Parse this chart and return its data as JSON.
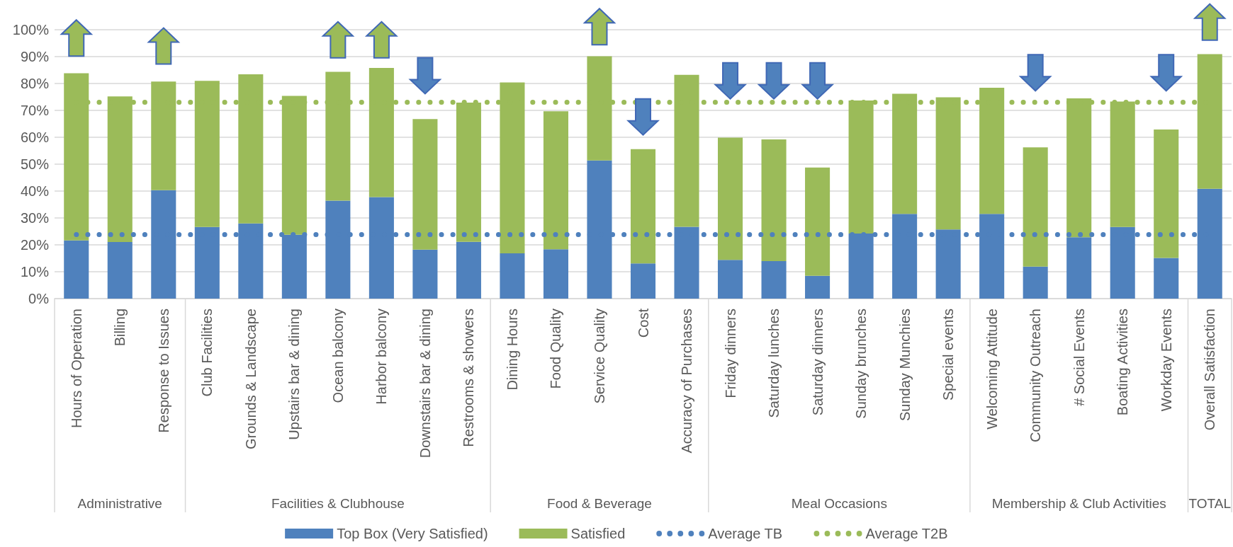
{
  "chart_data": {
    "type": "bar",
    "stacked": true,
    "categories": [
      "Hours of Operation",
      "Billing",
      "Response to Issues",
      "Club Facilities",
      "Grounds & Landscape",
      "Upstairs bar & dining",
      "Ocean balcony",
      "Harbor balcony",
      "Downstairs bar & dining",
      "Restrooms & showers",
      "Dining Hours",
      "Food Quality",
      "Service Quality",
      "Cost",
      "Accuracy of Purchases",
      "Friday dinners",
      "Saturday lunches",
      "Saturday dinners",
      "Sunday brunches",
      "Sunday Munchies",
      "Special events",
      "Welcoming Attitude",
      "Community Outreach",
      "# Social Events",
      "Boating Activities",
      "Workday Events",
      "Overall Satisfaction"
    ],
    "series": [
      {
        "name": "Top Box (Very Satisfied)",
        "color": "#4f81bd",
        "values": [
          21.6,
          21.0,
          40.3,
          26.6,
          27.9,
          23.7,
          36.4,
          37.7,
          18.2,
          21.1,
          16.8,
          18.3,
          51.3,
          13.1,
          26.7,
          14.4,
          13.9,
          8.5,
          24.2,
          31.5,
          25.7,
          31.5,
          11.9,
          22.8,
          26.6,
          15.1,
          40.8
        ]
      },
      {
        "name": "Satisfied",
        "color": "#9bbb59",
        "values": [
          62.1,
          54.1,
          40.3,
          54.3,
          55.4,
          51.6,
          47.8,
          48.0,
          48.5,
          51.7,
          63.5,
          51.3,
          38.7,
          42.4,
          56.4,
          45.4,
          45.2,
          40.2,
          49.4,
          44.6,
          49.1,
          46.8,
          44.3,
          51.6,
          46.6,
          47.7,
          50.0
        ]
      }
    ],
    "ref_lines": [
      {
        "axis": "y",
        "value": 23.9,
        "label": "Average TB",
        "color": "#4f81bd",
        "line_style": "dotted"
      },
      {
        "axis": "y",
        "value": 72.9,
        "label": "Average T2B",
        "color": "#9bbb59",
        "line_style": "dotted"
      }
    ],
    "ylim": [
      0,
      100
    ],
    "yticks": [
      {
        "value": 0,
        "label": "0%"
      },
      {
        "value": 10,
        "label": "10%"
      },
      {
        "value": 20,
        "label": "20%"
      },
      {
        "value": 30,
        "label": "30%"
      },
      {
        "value": 40,
        "label": "40%"
      },
      {
        "value": 50,
        "label": "50%"
      },
      {
        "value": 60,
        "label": "60%"
      },
      {
        "value": 70,
        "label": "70%"
      },
      {
        "value": 80,
        "label": "80%"
      },
      {
        "value": 90,
        "label": "90%"
      },
      {
        "value": 100,
        "label": "100%"
      }
    ],
    "grid": "y",
    "legend": "bottom",
    "annotations": [
      "Administrative",
      "Facilities & Clubhouse",
      "Food & Beverage",
      "Meal Occasions",
      "Membership & Club Activities",
      "TOTAL"
    ]
  }
}
